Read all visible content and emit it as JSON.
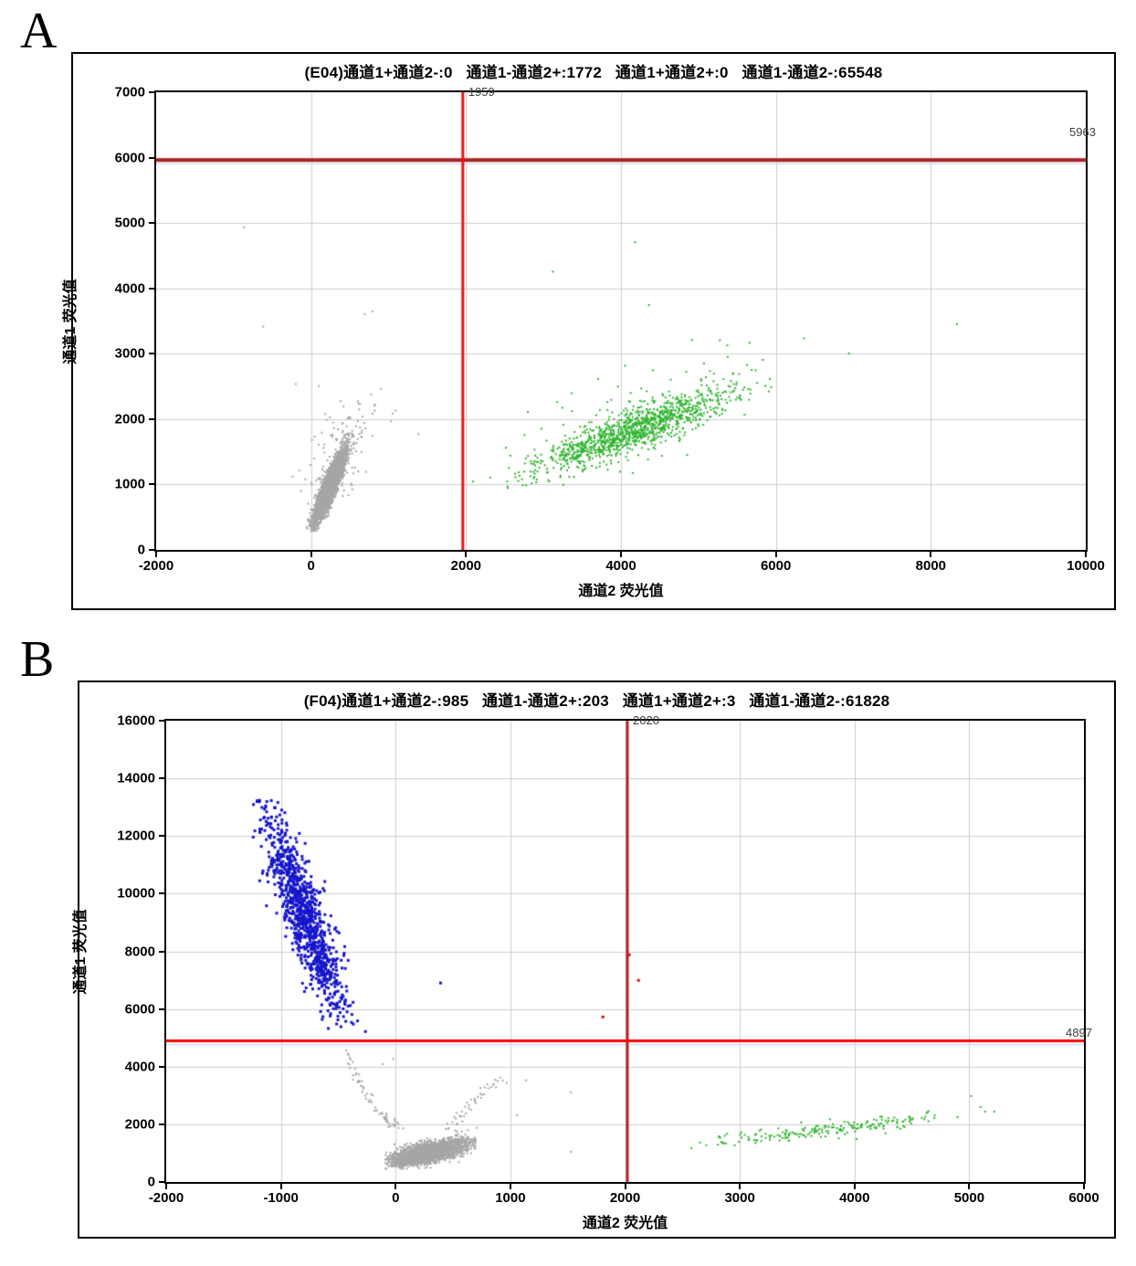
{
  "figure": {
    "background": "#ffffff",
    "grid_color": "#cccccc",
    "point_colors": {
      "negative_gray": "#a6a6a6",
      "channel2_green": "#2db42d",
      "channel1_blue": "#1515cb",
      "double_positive_red": "#cc1111"
    }
  },
  "chart_data": [
    {
      "panel_label": "A",
      "type": "scatter",
      "title": "(E04)通道1+通道2-:0   通道1-通道2+:1772   通道1+通道2+:0   通道1-通道2-:65548",
      "quadrant_counts": {
        "通道1+通道2-": 0,
        "通道1-通道2+": 1772,
        "通道1+通道2+": 0,
        "通道1-通道2-": 65548
      },
      "x_axis": {
        "label": "通道2 荧光值",
        "min": -2000,
        "max": 10000,
        "ticks": [
          -2000,
          0,
          2000,
          4000,
          6000,
          8000,
          10000
        ]
      },
      "y_axis": {
        "label": "通道1 荧光值",
        "min": 0,
        "max": 7000,
        "ticks": [
          0,
          1000,
          2000,
          3000,
          4000,
          5000,
          6000,
          7000
        ]
      },
      "grid": true,
      "grid_color": "#cccccc",
      "crosshair": {
        "order": [
          "h",
          "v"
        ],
        "underline_color": "#dce9f6",
        "v": {
          "value": 1959,
          "label": "1959",
          "color": "#ee1111",
          "width": 3
        },
        "h": {
          "value": 5963,
          "label": "5963",
          "color": "#aa2222",
          "width": 4
        }
      },
      "clusters": [
        {
          "name": "negative-droplets",
          "color": "#a6a6a6",
          "size": 2,
          "seed": 11,
          "count": 3200,
          "center": [
            235,
            1000
          ],
          "major": [
            95,
            270
          ],
          "minor": [
            42,
            62
          ],
          "clip": [
            -400,
            1500,
            300,
            2600
          ]
        },
        {
          "name": "negative-halo",
          "color": "#a6a6a6",
          "size": 2,
          "seed": 12,
          "count": 120,
          "center": [
            380,
            1500
          ],
          "major": [
            150,
            320
          ],
          "minor": [
            180,
            230
          ],
          "clip": [
            -350,
            1450,
            350,
            2750
          ]
        },
        {
          "name": "ch2-positive",
          "color": "#2db42d",
          "size": 2,
          "seed": 13,
          "count": 1150,
          "center": [
            4150,
            1850
          ],
          "major": [
            620,
            300
          ],
          "minor": [
            175,
            130
          ],
          "clip": [
            2500,
            6000,
            950,
            3200
          ]
        },
        {
          "name": "ch2-positive-halo",
          "color": "#2db42d",
          "size": 2,
          "seed": 14,
          "count": 110,
          "center": [
            4150,
            2050
          ],
          "major": [
            900,
            430
          ],
          "minor": [
            420,
            330
          ],
          "clip": [
            2500,
            6200,
            1000,
            3400
          ]
        }
      ],
      "trails": [],
      "outliers": [
        {
          "color": "#a6a6a6",
          "size": 2,
          "top": false,
          "points": [
            [
              -880,
              4950
            ],
            [
              -630,
              3430
            ],
            [
              -210,
              2550
            ],
            [
              90,
              2520
            ],
            [
              680,
              3620
            ],
            [
              780,
              3660
            ],
            [
              620,
              2250
            ],
            [
              810,
              2145
            ],
            [
              1080,
              2145
            ],
            [
              1020,
              1980
            ],
            [
              620,
              1890
            ],
            [
              1375,
              1785
            ]
          ]
        },
        {
          "color": "#2db42d",
          "size": 2,
          "top": false,
          "points": [
            [
              3110,
              4270
            ],
            [
              4170,
              4720
            ],
            [
              4350,
              3760
            ],
            [
              5230,
              2480
            ],
            [
              5820,
              2920
            ],
            [
              6350,
              3250
            ],
            [
              6930,
              3020
            ],
            [
              8325,
              3465
            ],
            [
              2080,
              1060
            ],
            [
              2620,
              1180
            ],
            [
              2870,
              1130
            ],
            [
              2300,
              1120
            ]
          ]
        }
      ]
    },
    {
      "panel_label": "B",
      "type": "scatter",
      "title": "(F04)通道1+通道2-:985   通道1-通道2+:203   通道1+通道2+:3   通道1-通道2-:61828",
      "quadrant_counts": {
        "通道1+通道2-": 985,
        "通道1-通道2+": 203,
        "通道1+通道2+": 3,
        "通道1-通道2-": 61828
      },
      "x_axis": {
        "label": "通道2 荧光值",
        "min": -2000,
        "max": 6000,
        "ticks": [
          -2000,
          -1000,
          0,
          1000,
          2000,
          3000,
          4000,
          5000,
          6000
        ]
      },
      "y_axis": {
        "label": "通道1 荧光值",
        "min": 0,
        "max": 16000,
        "ticks": [
          0,
          2000,
          4000,
          6000,
          8000,
          10000,
          12000,
          14000,
          16000
        ]
      },
      "grid": true,
      "grid_color": "#cccccc",
      "crosshair": {
        "order": [
          "v",
          "h"
        ],
        "underline_color": "#d6e6f5",
        "v": {
          "value": 2020,
          "label": "2020",
          "color": "#b22222",
          "width": 3
        },
        "h": {
          "value": 4897,
          "label": "4897",
          "color": "#ff0000",
          "width": 3
        }
      },
      "clusters": [
        {
          "name": "ch1-positive",
          "color": "#1515cb",
          "size": 3,
          "seed": 21,
          "count": 1000,
          "center": [
            -810,
            9350
          ],
          "major": [
            165,
            -1750
          ],
          "minor": [
            80,
            520
          ],
          "clip": [
            -1350,
            -150,
            5150,
            13300
          ]
        },
        {
          "name": "negative-droplets",
          "color": "#a6a6a6",
          "size": 2,
          "seed": 22,
          "count": 2300,
          "center": [
            290,
            1060
          ],
          "major": [
            150,
            170
          ],
          "minor": [
            95,
            145
          ],
          "clip": [
            -100,
            700,
            480,
            2300
          ]
        },
        {
          "name": "negative-core",
          "color": "#a6a6a6",
          "size": 2,
          "seed": 23,
          "count": 700,
          "center": [
            160,
            820
          ],
          "major": [
            70,
            70
          ],
          "minor": [
            55,
            65
          ],
          "clip": [
            -50,
            500,
            480,
            1500
          ]
        },
        {
          "name": "ch2-positive",
          "color": "#2db42d",
          "size": 2,
          "seed": 24,
          "count": 210,
          "center": [
            3750,
            1830
          ],
          "major": [
            500,
            230
          ],
          "minor": [
            160,
            105
          ],
          "clip": [
            2500,
            4700,
            1250,
            2600
          ]
        }
      ],
      "trails": [
        {
          "color": "#a6a6a6",
          "size": 2,
          "seed": 25,
          "count": 70,
          "from": [
            -450,
            4600
          ],
          "to": [
            30,
            1950
          ],
          "curve": 1.7,
          "jitter": [
            50,
            130
          ]
        },
        {
          "color": "#a6a6a6",
          "size": 2,
          "seed": 26,
          "count": 45,
          "from": [
            430,
            1750
          ],
          "to": [
            900,
            3550
          ],
          "curve": 1.2,
          "jitter": [
            70,
            160
          ]
        }
      ],
      "outliers": [
        {
          "color": "#a6a6a6",
          "size": 2,
          "top": false,
          "points": [
            [
              1520,
              3140
            ],
            [
              1520,
              1080
            ],
            [
              1050,
              2340
            ],
            [
              960,
              3470
            ],
            [
              1130,
              3560
            ],
            [
              -30,
              4300
            ],
            [
              -120,
              4120
            ]
          ]
        },
        {
          "color": "#2db42d",
          "size": 2,
          "top": false,
          "points": [
            [
              2570,
              1200
            ],
            [
              2700,
              1310
            ],
            [
              2840,
              1400
            ],
            [
              4890,
              2280
            ],
            [
              5010,
              3010
            ],
            [
              5090,
              2630
            ],
            [
              5130,
              2470
            ],
            [
              5210,
              2470
            ]
          ]
        },
        {
          "color": "#1515cb",
          "size": 3,
          "top": false,
          "points": [
            [
              380,
              6950
            ]
          ]
        },
        {
          "color": "#cc1111",
          "size": 3,
          "top": true,
          "points": [
            [
              2025,
              7925
            ],
            [
              2105,
              7040
            ],
            [
              1795,
              5770
            ]
          ]
        }
      ]
    }
  ]
}
